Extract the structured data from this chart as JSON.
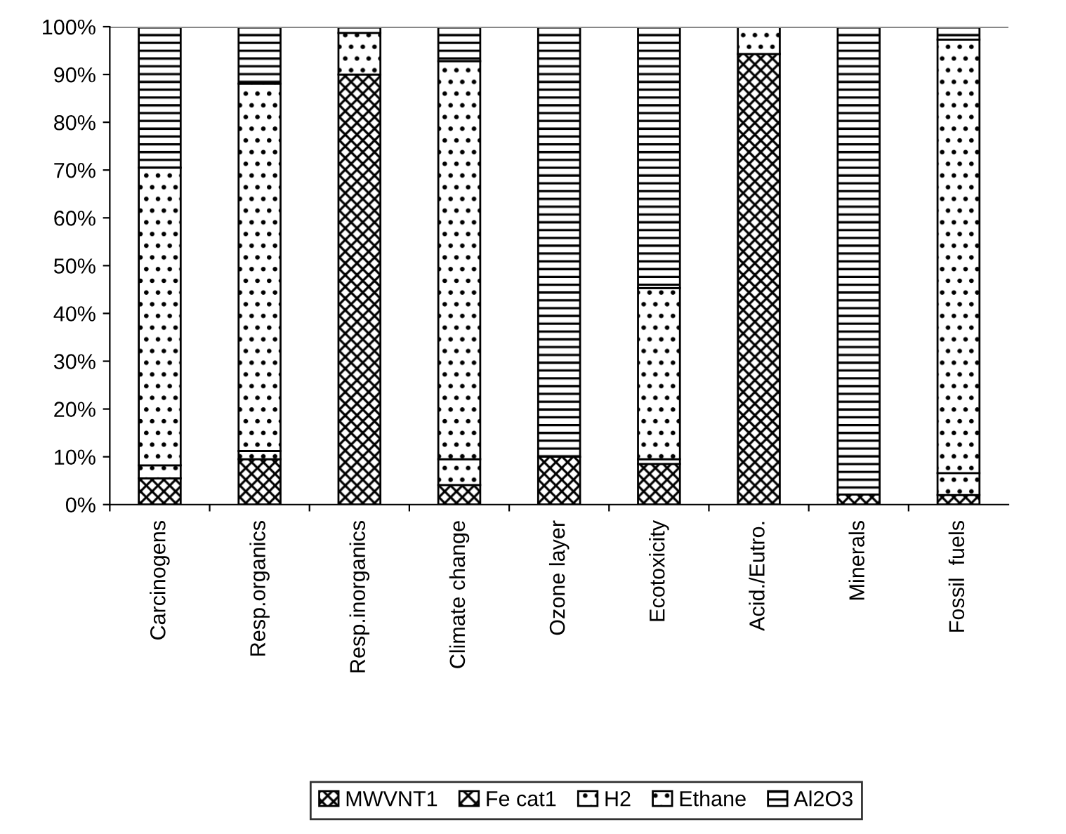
{
  "chart_data": {
    "type": "bar",
    "stacked": true,
    "categories": [
      "Carcinogens",
      "Resp.organics",
      "Resp.inorganics",
      "Climate change",
      "Ozone layer",
      "Ecotoxicity",
      "Acid./Eutro.",
      "Minerals",
      "Fossil  fuels"
    ],
    "series": [
      {
        "name": "MWVNT1",
        "color": "#000000",
        "values": [
          5.5,
          9.5,
          90,
          4.1,
          10,
          8.5,
          94.3,
          2.1,
          2
        ]
      },
      {
        "name": "Fe cat1",
        "color": "#000000",
        "values": [
          0,
          0,
          0,
          0,
          0,
          0,
          0,
          0,
          0
        ]
      },
      {
        "name": "H2",
        "color": "#000000",
        "values": [
          2.7,
          1.7,
          0,
          5.4,
          0,
          1,
          0,
          0,
          4.6
        ]
      },
      {
        "name": "Ethane",
        "color": "#000000",
        "values": [
          62.3,
          76.9,
          8.7,
          83.3,
          0,
          35.8,
          5.7,
          0,
          90.7
        ]
      },
      {
        "name": "Al2O3",
        "color": "#000000",
        "values": [
          29.5,
          11.9,
          1.3,
          7.2,
          90,
          54.7,
          0,
          97.9,
          2.7
        ]
      }
    ],
    "ylim": [
      0,
      100
    ],
    "yticks": [
      {
        "value": 0,
        "label": "0%"
      },
      {
        "value": 10,
        "label": "10%"
      },
      {
        "value": 20,
        "label": "20%"
      },
      {
        "value": 30,
        "label": "30%"
      },
      {
        "value": 40,
        "label": "40%"
      },
      {
        "value": 50,
        "label": "50%"
      },
      {
        "value": 60,
        "label": "60%"
      },
      {
        "value": 70,
        "label": "70%"
      },
      {
        "value": 80,
        "label": "80%"
      },
      {
        "value": 90,
        "label": "90%"
      },
      {
        "value": 100,
        "label": "100%"
      }
    ],
    "grid": false,
    "legend": "bottom"
  }
}
